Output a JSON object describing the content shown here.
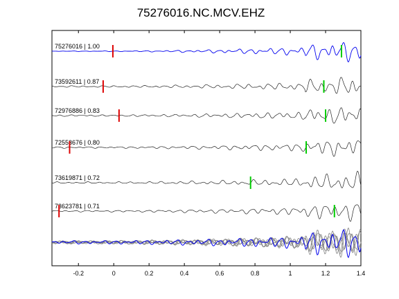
{
  "chart_data": {
    "type": "line",
    "title": "75276016.NC.MCV.EHZ",
    "xlabel": "",
    "ylabel": "",
    "xlim": [
      -0.35,
      1.4
    ],
    "x_ticks": [
      -0.2,
      0,
      0.2,
      0.4,
      0.6,
      0.8,
      1,
      1.2,
      1.4
    ],
    "x_tick_labels": [
      "-0.2",
      "0",
      "0.2",
      "0.4",
      "0.6",
      "0.8",
      "1",
      "1.2",
      "1.4"
    ],
    "grid": false,
    "series": [
      {
        "label": "75276016 | 1.00",
        "color": "#0000ee",
        "red_pick_x": -0.005,
        "green_pick_x": 1.29
      },
      {
        "label": "73592611 | 0.87",
        "color": "#222222",
        "red_pick_x": -0.06,
        "green_pick_x": 1.19
      },
      {
        "label": "72976886 | 0.83",
        "color": "#222222",
        "red_pick_x": 0.03,
        "green_pick_x": 1.2
      },
      {
        "label": "72553676 | 0.80",
        "color": "#222222",
        "red_pick_x": -0.25,
        "green_pick_x": 1.09
      },
      {
        "label": "73619871 | 0.72",
        "color": "#222222",
        "red_pick_x": null,
        "green_pick_x": 0.775
      },
      {
        "label": "73623781 | 0.71",
        "color": "#222222",
        "red_pick_x": -0.31,
        "green_pick_x": 1.25
      }
    ],
    "overlay": {
      "primary_color": "#0000ee",
      "others_color": "#808080"
    },
    "pick_colors": {
      "red": "#dd0000",
      "green": "#00cc00"
    }
  }
}
